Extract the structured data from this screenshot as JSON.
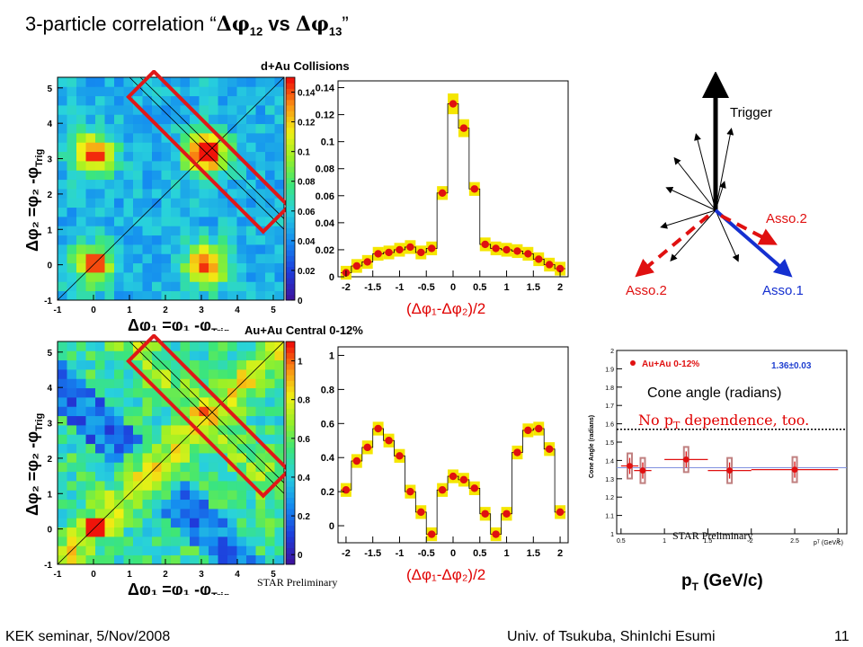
{
  "slide": {
    "title_prefix": "3-particle correlation “",
    "title_phi12": "Δφ",
    "title_sub12": "12",
    "title_vs": " vs ",
    "title_phi13": "Δφ",
    "title_sub13": "13",
    "title_suffix": "”",
    "page_number": "11"
  },
  "footer": {
    "left": "KEK seminar, 5/Nov/2008",
    "center": "Univ. of Tsukuba, ShinIchi Esumi"
  },
  "panels": {
    "dau_title": "d+Au Collisions",
    "auau_title": "Au+Au Central 0-12%",
    "y_axis_label_html": "Δφ₂ =φ₂ -φ",
    "y_axis_trig": "Trig",
    "x_axis_label": "Δφ₁ =φ₁ -φ",
    "x_axis_trig": "Trig",
    "projection_label": "(Δφ₁-Δφ₂)/2",
    "star_preliminary": "STAR Preliminary"
  },
  "vector_diagram": {
    "trigger": "Trigger",
    "asso2_right": "Asso.2",
    "asso2_left": "Asso.2",
    "asso1": "Asso.1"
  },
  "cone_angle": {
    "legend": "Au+Au 0-12%",
    "fit_value": "1.36±0.03",
    "y_axis": "Cone Angle (radians)",
    "x_axis": "pᵀ (GeV/c)",
    "overlay_title": "Cone angle (radians)",
    "no_pt_dependence": "No p",
    "no_pt_sub": "T",
    "no_pt_rest": " dependence, too.",
    "star_preliminary": "STAR Preliminary",
    "pt_label": "p",
    "pt_sub": "T",
    "pt_unit": " (GeV/c)",
    "yticks": [
      "1",
      "1.1",
      "1.2",
      "1.3",
      "1.4",
      "1.5",
      "1.6",
      "1.7",
      "1.8",
      "1.9",
      "2"
    ],
    "xticks": [
      "0.5",
      "1",
      "1.5",
      "2",
      "2.5",
      "3"
    ],
    "points_pt": [
      0.6,
      0.75,
      1.25,
      1.75,
      2.5
    ],
    "points_angle": [
      1.37,
      1.345,
      1.405,
      1.345,
      1.35
    ],
    "fit_line": 1.36,
    "dotted_line": 1.57
  },
  "chart_data": [
    {
      "type": "heatmap",
      "title": "d+Au Collisions",
      "xlim": [
        -1,
        5.3
      ],
      "ylim": [
        -1,
        5.3
      ],
      "xticks": [
        "-1",
        "0",
        "1",
        "2",
        "3",
        "4",
        "5"
      ],
      "yticks": [
        "-1",
        "0",
        "1",
        "2",
        "3",
        "4",
        "5"
      ],
      "colorbar_ticks": [
        "0",
        "0.02",
        "0.04",
        "0.06",
        "0.08",
        "0.1",
        "0.12",
        "0.14"
      ],
      "colorbar_range": [
        0,
        0.15
      ],
      "peaks": [
        [
          0,
          3.14
        ],
        [
          3.14,
          0
        ],
        [
          3.14,
          3.14
        ],
        [
          0,
          0
        ]
      ]
    },
    {
      "type": "bar",
      "title": "",
      "xlabel": "(Δφ₁-Δφ₂)/2",
      "xlim": [
        -2.15,
        2.15
      ],
      "ylim": [
        0,
        0.145
      ],
      "xticks": [
        "-2",
        "-1.5",
        "-1",
        "-0.5",
        "0",
        "0.5",
        "1",
        "1.5",
        "2"
      ],
      "yticks": [
        "0",
        "0.02",
        "0.04",
        "0.06",
        "0.08",
        "0.1",
        "0.12",
        "0.14"
      ],
      "x": [
        -2.0,
        -1.8,
        -1.6,
        -1.4,
        -1.2,
        -1.0,
        -0.8,
        -0.6,
        -0.4,
        -0.2,
        0.0,
        0.2,
        0.4,
        0.6,
        0.8,
        1.0,
        1.2,
        1.4,
        1.6,
        1.8,
        2.0
      ],
      "values": [
        0.003,
        0.008,
        0.011,
        0.017,
        0.018,
        0.02,
        0.022,
        0.018,
        0.021,
        0.062,
        0.128,
        0.11,
        0.065,
        0.024,
        0.021,
        0.02,
        0.019,
        0.017,
        0.013,
        0.009,
        0.006
      ]
    },
    {
      "type": "heatmap",
      "title": "Au+Au Central 0-12%",
      "xlim": [
        -1,
        5.3
      ],
      "ylim": [
        -1,
        5.3
      ],
      "xticks": [
        "-1",
        "0",
        "1",
        "2",
        "3",
        "4",
        "5"
      ],
      "yticks": [
        "-1",
        "0",
        "1",
        "2",
        "3",
        "4",
        "5"
      ],
      "colorbar_ticks": [
        "0",
        "0.2",
        "0.4",
        "0.6",
        "0.8",
        "1"
      ],
      "colorbar_range": [
        -0.05,
        1.1
      ]
    },
    {
      "type": "bar",
      "title": "",
      "xlabel": "(Δφ₁-Δφ₂)/2",
      "xlim": [
        -2.15,
        2.15
      ],
      "ylim": [
        -0.1,
        1.05
      ],
      "xticks": [
        "-2",
        "-1.5",
        "-1",
        "-0.5",
        "0",
        "0.5",
        "1",
        "1.5",
        "2"
      ],
      "yticks": [
        "0",
        "0.2",
        "0.4",
        "0.6",
        "0.8",
        "1"
      ],
      "x": [
        -2.0,
        -1.8,
        -1.6,
        -1.4,
        -1.2,
        -1.0,
        -0.8,
        -0.6,
        -0.4,
        -0.2,
        0.0,
        0.2,
        0.4,
        0.6,
        0.8,
        1.0,
        1.2,
        1.4,
        1.6,
        1.8,
        2.0
      ],
      "values": [
        0.21,
        0.38,
        0.46,
        0.57,
        0.5,
        0.41,
        0.2,
        0.08,
        -0.05,
        0.21,
        0.29,
        0.27,
        0.22,
        0.07,
        -0.05,
        0.07,
        0.43,
        0.56,
        0.57,
        0.45,
        0.08
      ]
    }
  ]
}
